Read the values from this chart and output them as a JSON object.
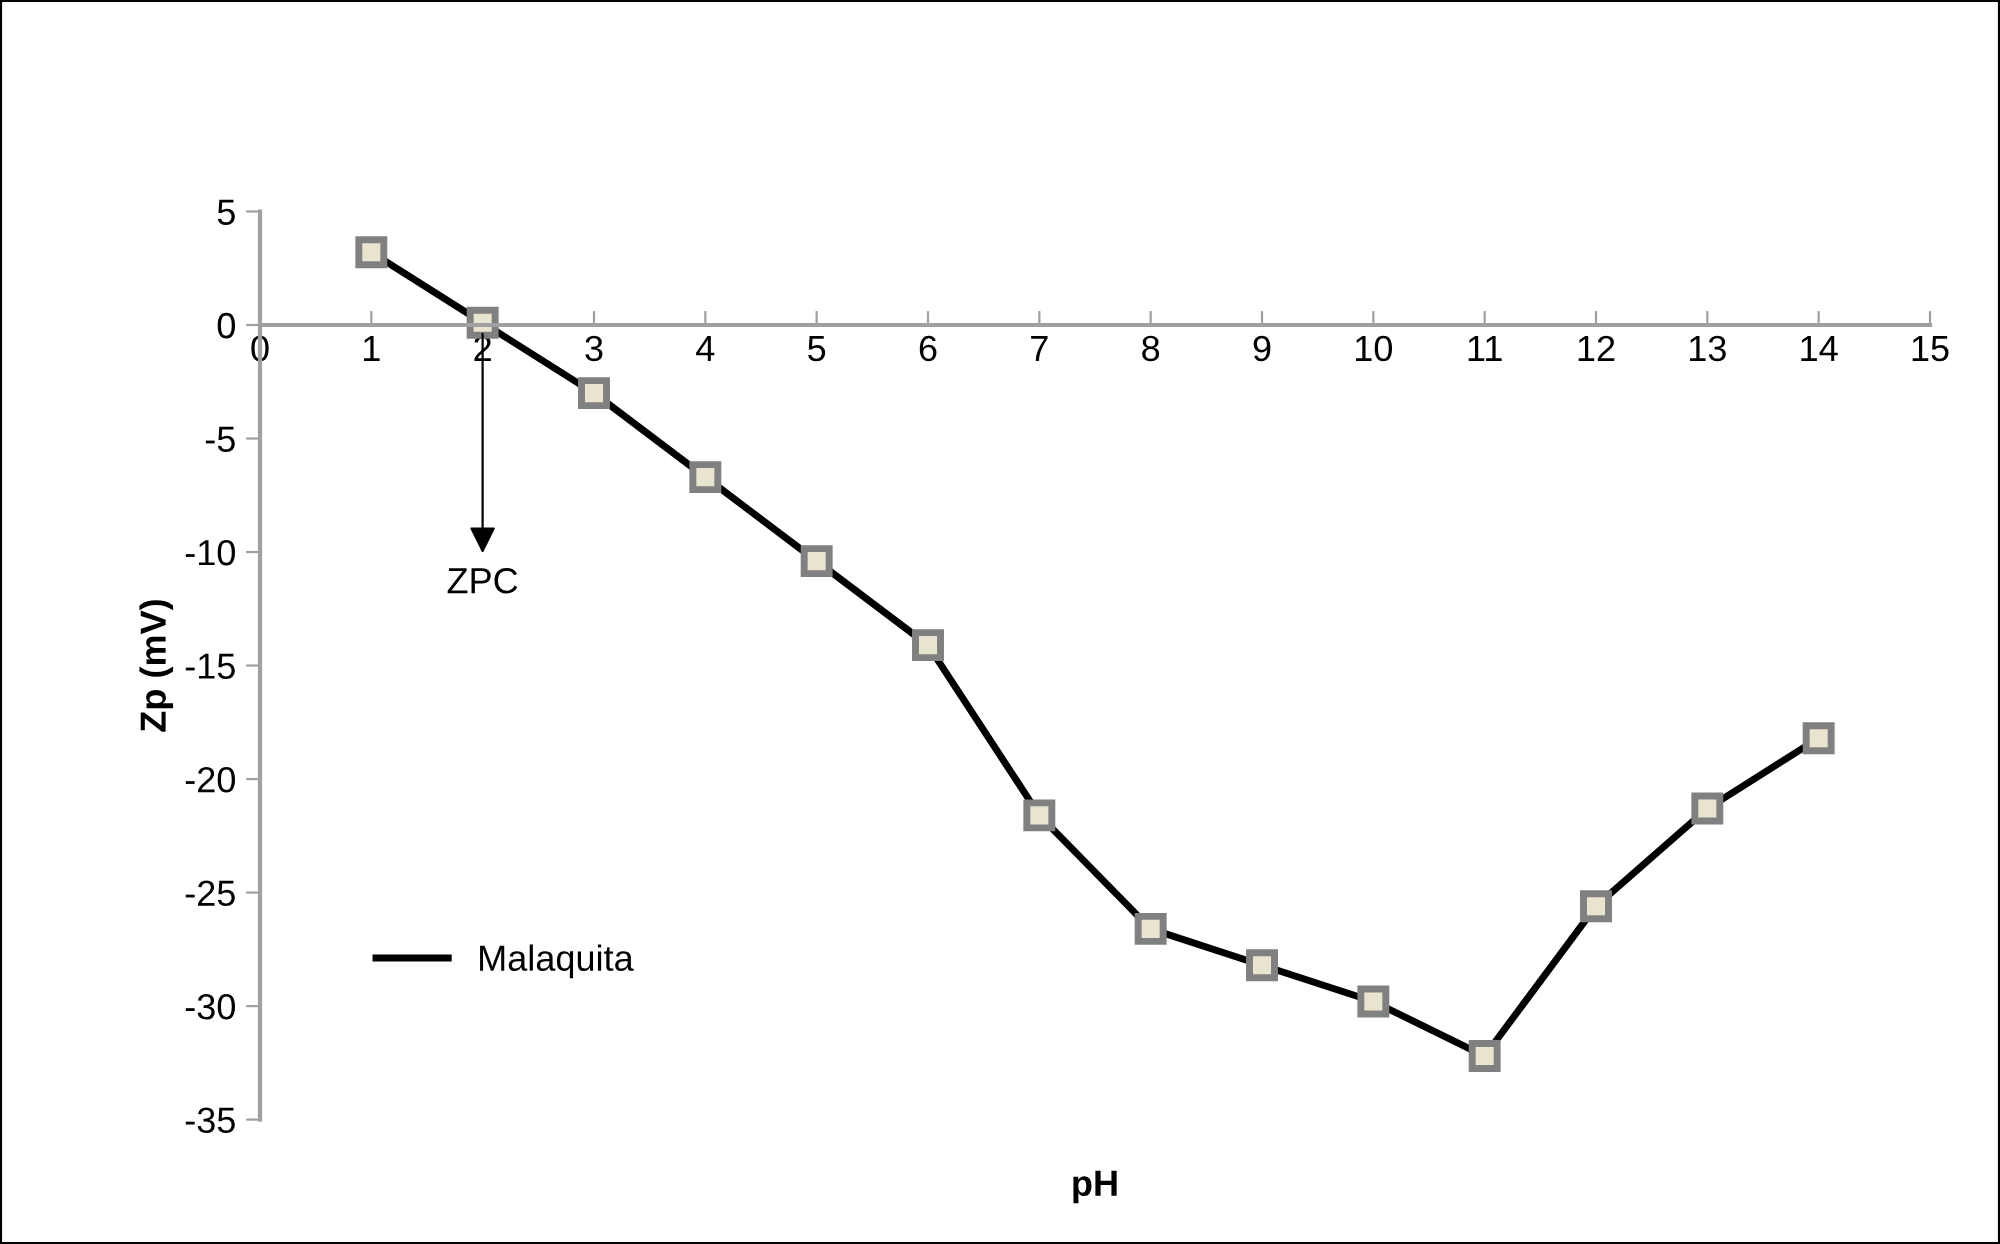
{
  "chart_data": {
    "type": "line",
    "xlabel": "pH",
    "ylabel": "Zp (mV)",
    "x": [
      1,
      2,
      3,
      4,
      5,
      6,
      7,
      8,
      9,
      10,
      11,
      12,
      13,
      14
    ],
    "series": [
      {
        "name": "Malaquita",
        "color": "#000000",
        "values": [
          3.2,
          0.1,
          -3.0,
          -6.7,
          -10.4,
          -14.1,
          -21.6,
          -26.6,
          -28.2,
          -29.8,
          -32.2,
          -25.6,
          -21.3,
          -18.2
        ]
      }
    ],
    "xlim": [
      0,
      15
    ],
    "xticks": [
      0,
      1,
      2,
      3,
      4,
      5,
      6,
      7,
      8,
      9,
      10,
      11,
      12,
      13,
      14,
      15
    ],
    "ylim": [
      -35,
      5
    ],
    "yticks": [
      -35,
      -30,
      -25,
      -20,
      -15,
      -10,
      -5,
      0,
      5
    ],
    "marker": "square",
    "line_style": "solid",
    "grid": false,
    "legend": "bottom left",
    "annotations": [
      "ZPC"
    ]
  }
}
